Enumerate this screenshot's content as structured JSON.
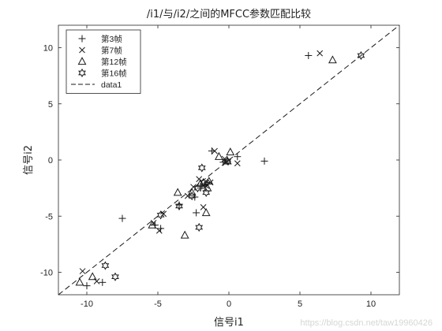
{
  "chart_data": {
    "type": "scatter",
    "title": "/i1/与/i2/之间的MFCC参数匹配比较",
    "xlabel": "信号i1",
    "ylabel": "信号i2",
    "xlim": [
      -12,
      12
    ],
    "ylim": [
      -12,
      12
    ],
    "xticks": [
      -10,
      -5,
      0,
      5,
      10
    ],
    "yticks": [
      -10,
      -5,
      0,
      5,
      10
    ],
    "grid": false,
    "legend_position": "top-left",
    "series": [
      {
        "name": "第3帧",
        "marker": "plus",
        "points": [
          [
            5.6,
            9.3
          ],
          [
            -7.5,
            -5.2
          ],
          [
            -2.3,
            -4.7
          ],
          [
            -1.2,
            0.8
          ],
          [
            -0.1,
            -0.1
          ],
          [
            0.6,
            0.3
          ],
          [
            2.5,
            -0.1
          ],
          [
            -1.5,
            -2.0
          ],
          [
            -1.9,
            -2.3
          ],
          [
            -2.4,
            -3.3
          ],
          [
            -3.5,
            -4.0
          ],
          [
            -5.2,
            -5.8
          ],
          [
            -4.8,
            -6.1
          ],
          [
            -10.0,
            -11.2
          ],
          [
            -8.9,
            -10.9
          ],
          [
            -0.4,
            -0.2
          ],
          [
            -2.0,
            -2.5
          ],
          [
            -1.7,
            -2.2
          ]
        ]
      },
      {
        "name": "第7帧",
        "marker": "x",
        "points": [
          [
            6.4,
            9.5
          ],
          [
            -1.0,
            0.8
          ],
          [
            -0.3,
            0.1
          ],
          [
            0.6,
            -0.3
          ],
          [
            -2.1,
            -1.7
          ],
          [
            -1.8,
            -4.2
          ],
          [
            -2.5,
            -2.4
          ],
          [
            -2.9,
            -3.2
          ],
          [
            -4.6,
            -4.8
          ],
          [
            -4.9,
            -6.3
          ],
          [
            -5.3,
            -5.6
          ],
          [
            -10.3,
            -9.9
          ],
          [
            -9.3,
            -10.8
          ],
          [
            -1.6,
            -2.3
          ],
          [
            -1.3,
            -2.0
          ],
          [
            -0.2,
            -0.2
          ]
        ]
      },
      {
        "name": "第12帧",
        "marker": "triangle",
        "points": [
          [
            7.3,
            8.9
          ],
          [
            0.1,
            0.7
          ],
          [
            -0.7,
            0.3
          ],
          [
            -0.1,
            -0.1
          ],
          [
            -2.6,
            -2.9
          ],
          [
            -1.5,
            -2.5
          ],
          [
            -3.6,
            -2.9
          ],
          [
            -1.6,
            -4.7
          ],
          [
            -3.1,
            -6.7
          ],
          [
            -5.4,
            -5.8
          ],
          [
            -10.5,
            -10.9
          ],
          [
            -9.6,
            -10.4
          ],
          [
            -1.4,
            -1.9
          ],
          [
            -2.0,
            -2.1
          ]
        ]
      },
      {
        "name": "第16帧",
        "marker": "hexagram",
        "points": [
          [
            9.3,
            9.3
          ],
          [
            -1.9,
            -0.7
          ],
          [
            -1.6,
            -2.9
          ],
          [
            -2.6,
            -3.2
          ],
          [
            -3.5,
            -4.1
          ],
          [
            -4.8,
            -4.9
          ],
          [
            -2.1,
            -6.0
          ],
          [
            -8.7,
            -9.4
          ],
          [
            -8.0,
            -10.4
          ],
          [
            -0.1,
            -0.1
          ],
          [
            -1.8,
            -2.0
          ],
          [
            -2.2,
            -2.5
          ]
        ]
      }
    ],
    "reference_line": {
      "name": "data1",
      "style": "dashed",
      "from": [
        -12,
        -12
      ],
      "to": [
        12,
        12
      ]
    }
  },
  "watermark": "https://blog.csdn.net/taw19960426"
}
